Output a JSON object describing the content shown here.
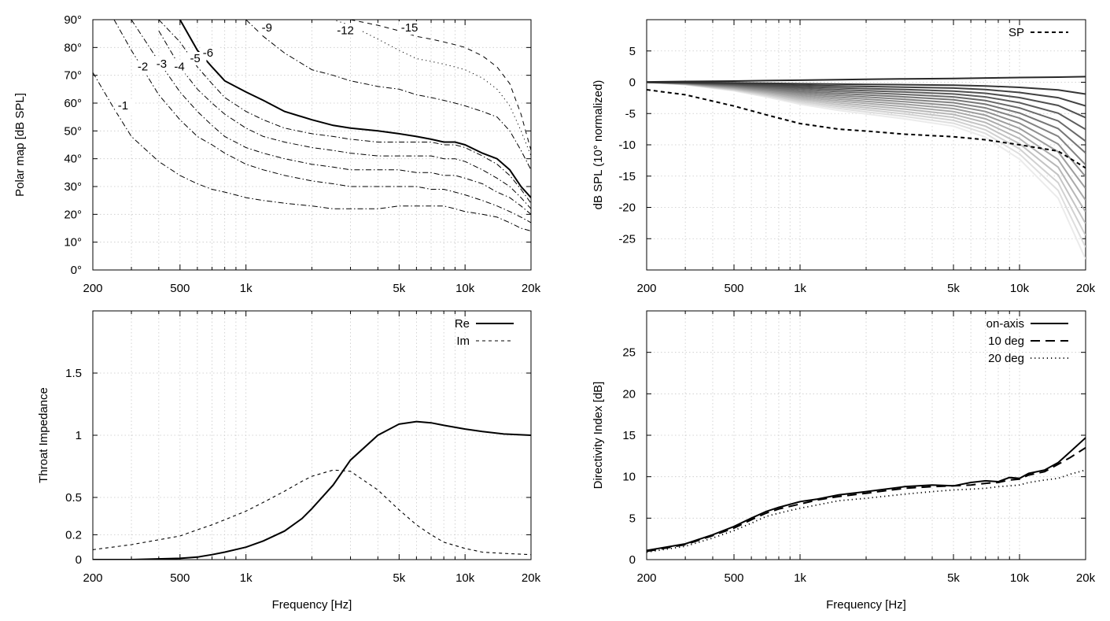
{
  "freq_ticks": [
    {
      "v": 200,
      "label": "200"
    },
    {
      "v": 500,
      "label": "500"
    },
    {
      "v": 1000,
      "label": "1k"
    },
    {
      "v": 5000,
      "label": "5k"
    },
    {
      "v": 10000,
      "label": "10k"
    },
    {
      "v": 20000,
      "label": "20k"
    }
  ],
  "xlabel": "Frequency [Hz]",
  "chart_data": [
    {
      "id": "polar",
      "type": "line",
      "ylabel": "Polar map [dB SPL]",
      "xlim": [
        200,
        20000
      ],
      "xscale": "log",
      "ylim": [
        0,
        90
      ],
      "yticks": [
        {
          "v": 0,
          "label": "0°"
        },
        {
          "v": 10,
          "label": "10°"
        },
        {
          "v": 20,
          "label": "20°"
        },
        {
          "v": 30,
          "label": "30°"
        },
        {
          "v": 40,
          "label": "40°"
        },
        {
          "v": 50,
          "label": "50°"
        },
        {
          "v": 60,
          "label": "60°"
        },
        {
          "v": 70,
          "label": "70°"
        },
        {
          "v": 80,
          "label": "80°"
        },
        {
          "v": 90,
          "label": "90°"
        }
      ],
      "x": [
        200,
        250,
        300,
        400,
        500,
        600,
        700,
        800,
        1000,
        1200,
        1500,
        2000,
        2500,
        3000,
        4000,
        5000,
        6000,
        7000,
        8000,
        9000,
        10000,
        12000,
        14000,
        16000,
        18000,
        20000
      ],
      "series": [
        {
          "name": "-1",
          "style": "dashdot",
          "label_at": [
            260,
            58
          ],
          "values": [
            71,
            58,
            48,
            39,
            34,
            31,
            29,
            28,
            26,
            25,
            24,
            23,
            22,
            22,
            22,
            23,
            23,
            23,
            23,
            22,
            21,
            20,
            19,
            17,
            15,
            14
          ]
        },
        {
          "name": "-2",
          "style": "dashdot",
          "label_at": [
            320,
            72
          ],
          "values": [
            null,
            90,
            79,
            63,
            54,
            48,
            45,
            42,
            38,
            36,
            34,
            32,
            31,
            30,
            30,
            30,
            30,
            29,
            29,
            28,
            27,
            25,
            23,
            21,
            19,
            17
          ]
        },
        {
          "name": "-3",
          "style": "dashdot",
          "label_at": [
            390,
            73
          ],
          "values": [
            null,
            null,
            90,
            75,
            64,
            57,
            52,
            48,
            44,
            42,
            40,
            38,
            37,
            36,
            36,
            36,
            35,
            35,
            34,
            34,
            33,
            31,
            28,
            26,
            23,
            20
          ]
        },
        {
          "name": "-4",
          "style": "dashdot",
          "label_at": [
            470,
            72
          ],
          "values": [
            null,
            null,
            null,
            86,
            73,
            65,
            60,
            56,
            51,
            48,
            46,
            44,
            43,
            42,
            41,
            41,
            41,
            41,
            40,
            40,
            39,
            36,
            33,
            30,
            26,
            22
          ]
        },
        {
          "name": "-5",
          "style": "dashdot",
          "label_at": [
            555,
            75
          ],
          "values": [
            null,
            null,
            null,
            90,
            82,
            73,
            67,
            62,
            57,
            54,
            51,
            49,
            48,
            47,
            46,
            46,
            46,
            46,
            45,
            45,
            44,
            41,
            38,
            34,
            29,
            24
          ]
        },
        {
          "name": "-6",
          "style": "solid",
          "label_at": [
            635,
            77
          ],
          "values": [
            null,
            null,
            null,
            null,
            90,
            79,
            73,
            68,
            64,
            61,
            57,
            54,
            52,
            51,
            50,
            49,
            48,
            47,
            46,
            46,
            45,
            42,
            40,
            36,
            30,
            26
          ]
        },
        {
          "name": "-9",
          "style": "dashdot",
          "label_at": [
            1180,
            86
          ],
          "values": [
            null,
            null,
            null,
            null,
            null,
            null,
            null,
            null,
            90,
            84,
            78,
            72,
            70,
            68,
            66,
            65,
            63,
            62,
            61,
            60,
            59,
            57,
            55,
            50,
            43,
            36
          ]
        },
        {
          "name": "-12",
          "style": "dotted",
          "label_at": [
            2600,
            85
          ],
          "values": [
            null,
            null,
            null,
            null,
            null,
            null,
            null,
            null,
            null,
            null,
            null,
            90,
            90,
            88,
            83,
            79,
            76,
            75,
            74,
            73,
            72,
            69,
            65,
            59,
            50,
            41
          ]
        },
        {
          "name": "-15",
          "style": "dashed",
          "label_at": [
            5100,
            86
          ],
          "values": [
            null,
            null,
            null,
            null,
            null,
            null,
            null,
            null,
            null,
            null,
            null,
            null,
            null,
            90,
            88,
            86,
            84,
            83,
            82,
            81,
            80,
            77,
            73,
            67,
            56,
            43
          ]
        }
      ]
    },
    {
      "id": "spl",
      "type": "line",
      "ylabel": "dB SPL (10° normalized)",
      "xlim": [
        200,
        20000
      ],
      "xscale": "log",
      "ylim": [
        -30,
        10
      ],
      "yticks": [
        {
          "v": 5,
          "label": "5"
        },
        {
          "v": 0,
          "label": "0"
        },
        {
          "v": -5,
          "label": "-5"
        },
        {
          "v": -10,
          "label": "-10"
        },
        {
          "v": -15,
          "label": "-15"
        },
        {
          "v": -20,
          "label": "-20"
        },
        {
          "v": -25,
          "label": "-25"
        }
      ],
      "legend": [
        "SP"
      ],
      "legend_position": "top-right",
      "x": [
        200,
        300,
        500,
        700,
        1000,
        1500,
        2000,
        3000,
        5000,
        7000,
        10000,
        15000,
        20000
      ],
      "sp": [
        -1.2,
        -2.0,
        -3.8,
        -5.2,
        -6.6,
        -7.5,
        -7.8,
        -8.3,
        -8.7,
        -9.2,
        -10.0,
        -11.0,
        -13.7
      ],
      "family_base": [
        0,
        -0.2,
        -0.7,
        -1.2,
        -1.8,
        -2.3,
        -2.6,
        -3.0,
        -3.6,
        -4.5,
        -6.3,
        -9.5,
        -14.5
      ],
      "family_count": 16
    },
    {
      "id": "impedance",
      "type": "line",
      "ylabel": "Throat Impedance",
      "xlim": [
        200,
        20000
      ],
      "xscale": "log",
      "ylim": [
        0,
        2.0
      ],
      "yticks": [
        {
          "v": 0,
          "label": "0"
        },
        {
          "v": 0.2,
          "label": "0.2"
        },
        {
          "v": 0.5,
          "label": "0.5"
        },
        {
          "v": 1,
          "label": "1"
        },
        {
          "v": 1.5,
          "label": "1.5"
        }
      ],
      "legend_position": "top-right",
      "x": [
        200,
        300,
        500,
        600,
        700,
        800,
        1000,
        1200,
        1500,
        1800,
        2000,
        2500,
        3000,
        4000,
        5000,
        6000,
        7000,
        8000,
        10000,
        12000,
        15000,
        20000
      ],
      "series": [
        {
          "name": "Re",
          "style": "solid",
          "values": [
            0.0,
            0.0,
            0.01,
            0.02,
            0.04,
            0.06,
            0.1,
            0.15,
            0.23,
            0.33,
            0.41,
            0.6,
            0.8,
            1.0,
            1.09,
            1.11,
            1.1,
            1.08,
            1.05,
            1.03,
            1.01,
            1.0
          ]
        },
        {
          "name": "Im",
          "style": "dashed",
          "values": [
            0.08,
            0.12,
            0.19,
            0.24,
            0.28,
            0.32,
            0.39,
            0.46,
            0.55,
            0.63,
            0.67,
            0.72,
            0.71,
            0.56,
            0.4,
            0.28,
            0.2,
            0.14,
            0.09,
            0.06,
            0.05,
            0.04
          ]
        }
      ]
    },
    {
      "id": "di",
      "type": "line",
      "ylabel": "Directivity Index [dB]",
      "xlim": [
        200,
        20000
      ],
      "xscale": "log",
      "ylim": [
        0,
        30
      ],
      "yticks": [
        {
          "v": 0,
          "label": "0"
        },
        {
          "v": 5,
          "label": "5"
        },
        {
          "v": 10,
          "label": "10"
        },
        {
          "v": 15,
          "label": "15"
        },
        {
          "v": 20,
          "label": "20"
        },
        {
          "v": 25,
          "label": "25"
        }
      ],
      "legend_position": "top-right",
      "x": [
        200,
        300,
        400,
        500,
        600,
        700,
        800,
        1000,
        1200,
        1500,
        2000,
        3000,
        4000,
        5000,
        6000,
        7000,
        8000,
        9000,
        10000,
        11000,
        13000,
        15000,
        17000,
        20000
      ],
      "series": [
        {
          "name": "on-axis",
          "style": "solid",
          "values": [
            1.1,
            1.9,
            3.0,
            4.0,
            5.0,
            5.8,
            6.3,
            7.0,
            7.3,
            7.8,
            8.2,
            8.8,
            9.0,
            8.9,
            9.3,
            9.5,
            9.4,
            9.9,
            9.8,
            10.4,
            10.8,
            11.7,
            13.0,
            14.7
          ]
        },
        {
          "name": "10 deg",
          "style": "dashed",
          "values": [
            1.0,
            1.8,
            2.9,
            3.8,
            4.8,
            5.6,
            6.1,
            6.7,
            7.2,
            7.6,
            8.0,
            8.6,
            8.8,
            8.9,
            9.0,
            9.2,
            9.3,
            9.6,
            9.7,
            10.2,
            10.6,
            11.5,
            12.3,
            13.5
          ]
        },
        {
          "name": "20 deg",
          "style": "dotted",
          "values": [
            0.9,
            1.6,
            2.6,
            3.5,
            4.4,
            5.2,
            5.6,
            6.2,
            6.6,
            7.1,
            7.4,
            7.9,
            8.2,
            8.4,
            8.5,
            8.6,
            8.8,
            8.9,
            9.0,
            9.3,
            9.6,
            9.8,
            10.3,
            10.8
          ]
        }
      ]
    }
  ]
}
